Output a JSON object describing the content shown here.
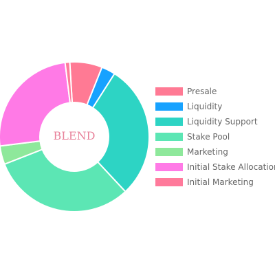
{
  "chart_data": {
    "type": "pie",
    "variant": "doughnut",
    "center_text": "BLEND",
    "labels": [
      "Presale",
      "Liquidity",
      "Liquidity Support",
      "Stake Pool",
      "Marketing",
      "Initial Stake Allocation",
      "Initial Marketing"
    ],
    "values": [
      7,
      3,
      29,
      31,
      4,
      25,
      1
    ],
    "colors": [
      "#ff7a94",
      "#17a2ff",
      "#2dd4c4",
      "#5ce6b4",
      "#8ee89b",
      "#ff7ae6",
      "#ff7a9b"
    ],
    "legend_position": "right"
  }
}
